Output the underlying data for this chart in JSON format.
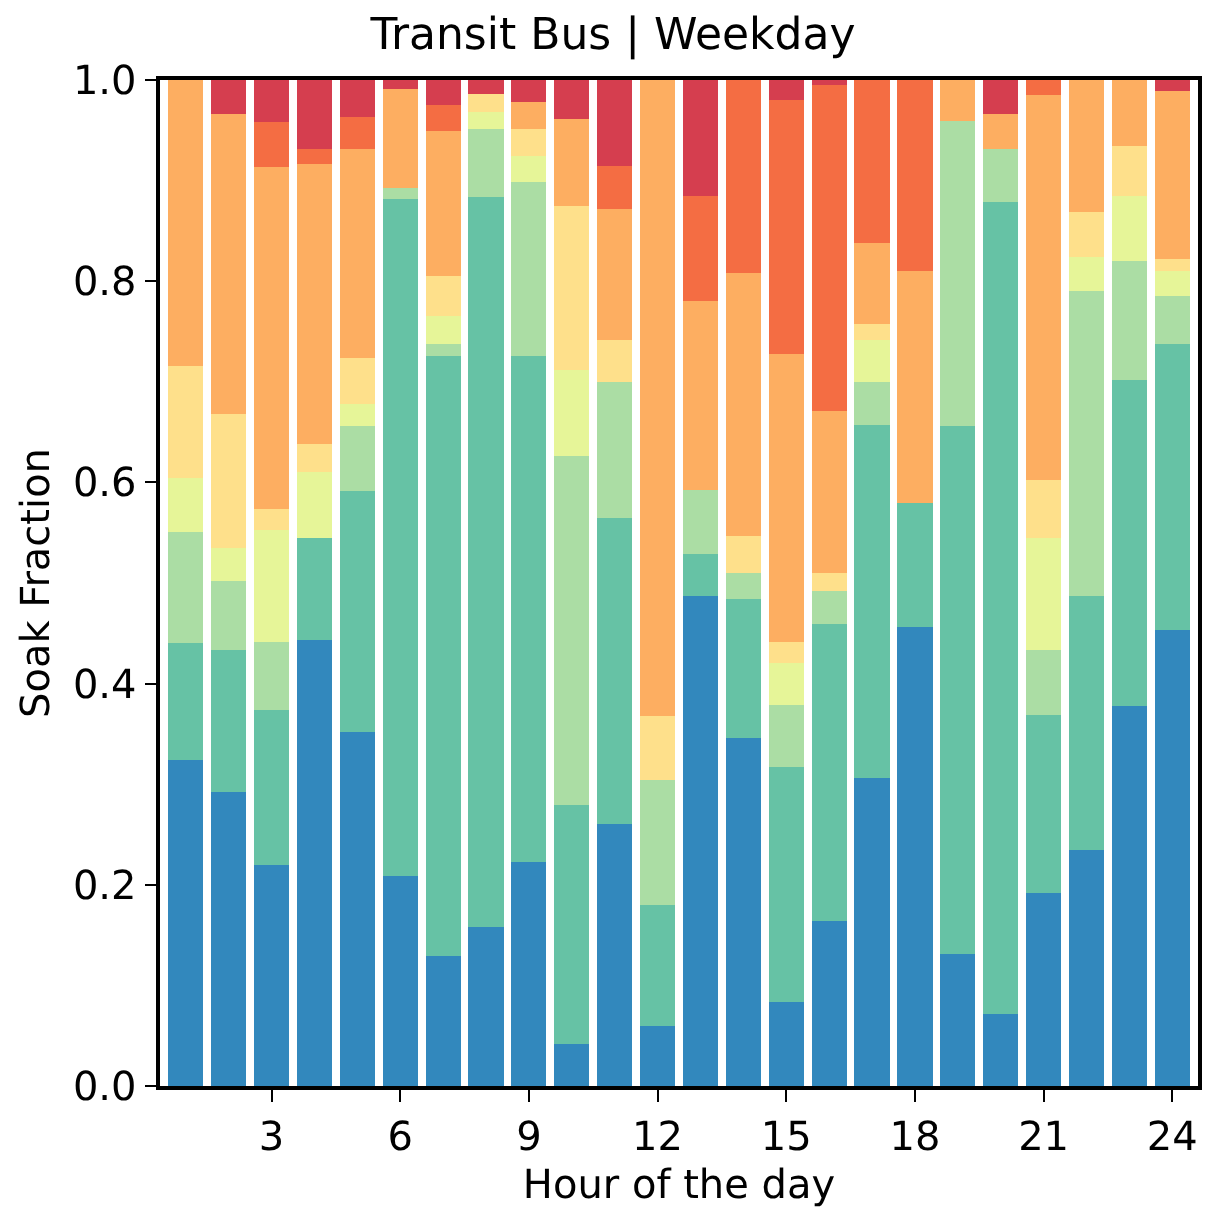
{
  "chart_data": {
    "type": "bar",
    "stacked": true,
    "title": "Transit Bus | Weekday",
    "xlabel": "Hour of the day",
    "ylabel": "Soak Fraction",
    "x": [
      1,
      2,
      3,
      4,
      5,
      6,
      7,
      8,
      9,
      10,
      11,
      12,
      13,
      14,
      15,
      16,
      17,
      18,
      19,
      20,
      21,
      22,
      23,
      24
    ],
    "xlim": [
      0.4,
      24.6
    ],
    "xticks": [
      3,
      6,
      9,
      12,
      15,
      18,
      21,
      24
    ],
    "ylim": [
      0,
      1
    ],
    "yticks": [
      {
        "value": 0,
        "label": "0.0"
      },
      {
        "value": 0.2,
        "label": "0.2"
      },
      {
        "value": 0.4,
        "label": "0.4"
      },
      {
        "value": 0.6,
        "label": "0.6"
      },
      {
        "value": 0.8,
        "label": "0.8"
      },
      {
        "value": 1,
        "label": "1.0"
      }
    ],
    "series": [
      {
        "color": "#3288bd",
        "values": [
          0.324,
          0.292,
          0.22,
          0.443,
          0.352,
          0.209,
          0.129,
          0.158,
          0.223,
          0.042,
          0.26,
          0.06,
          0.487,
          0.346,
          0.084,
          0.164,
          0.306,
          0.456,
          0.131,
          0.072,
          0.192,
          0.235,
          0.378,
          0.453
        ]
      },
      {
        "color": "#66c2a5",
        "values": [
          0.116,
          0.141,
          0.154,
          0.102,
          0.239,
          0.673,
          0.597,
          0.726,
          0.503,
          0.237,
          0.305,
          0.12,
          0.042,
          0.138,
          0.233,
          0.295,
          0.351,
          0.124,
          0.525,
          0.807,
          0.177,
          0.252,
          0.324,
          0.285
        ]
      },
      {
        "color": "#abdda4",
        "values": [
          0.111,
          0.069,
          0.067,
          0,
          0.065,
          0.011,
          0.012,
          0.067,
          0.173,
          0.347,
          0.135,
          0.124,
          0.063,
          0.026,
          0.062,
          0.033,
          0.043,
          0,
          0.303,
          0.052,
          0.064,
          0.303,
          0.118,
          0.047
        ]
      },
      {
        "color": "#e6f598",
        "values": [
          0.053,
          0.033,
          0.112,
          0.065,
          0.022,
          0,
          0.027,
          0.017,
          0.025,
          0.086,
          0,
          0,
          0,
          0,
          0.041,
          0,
          0.042,
          0,
          0,
          0,
          0.112,
          0.034,
          0.065,
          0.025
        ]
      },
      {
        "color": "#fee08b",
        "values": [
          0.112,
          0.133,
          0.021,
          0.028,
          0.046,
          0,
          0.04,
          0.018,
          0.027,
          0.163,
          0.042,
          0.064,
          0,
          0.037,
          0.021,
          0.018,
          0.015,
          0,
          0,
          0,
          0.057,
          0.045,
          0.049,
          0.012
        ]
      },
      {
        "color": "#fdae61",
        "values": [
          0.284,
          0.298,
          0.34,
          0.279,
          0.207,
          0.098,
          0.144,
          0,
          0.027,
          0.086,
          0.13,
          0.632,
          0.188,
          0.261,
          0.287,
          0.161,
          0.081,
          0.23,
          0.041,
          0.035,
          0.383,
          0.131,
          0.066,
          0.167
        ]
      },
      {
        "color": "#f46d43",
        "values": [
          0,
          0,
          0.044,
          0.014,
          0.032,
          0,
          0.026,
          0,
          0,
          0,
          0.043,
          0,
          0.105,
          0.192,
          0.252,
          0.324,
          0.162,
          0.19,
          0,
          0,
          0.015,
          0,
          0,
          0
        ]
      },
      {
        "color": "#d53e4f",
        "values": [
          0,
          0.034,
          0.042,
          0.069,
          0.037,
          0.009,
          0.025,
          0.014,
          0.022,
          0.039,
          0.085,
          0,
          0.115,
          0,
          0.02,
          0.005,
          0,
          0,
          0,
          0.034,
          0,
          0,
          0,
          0.011
        ]
      }
    ]
  }
}
